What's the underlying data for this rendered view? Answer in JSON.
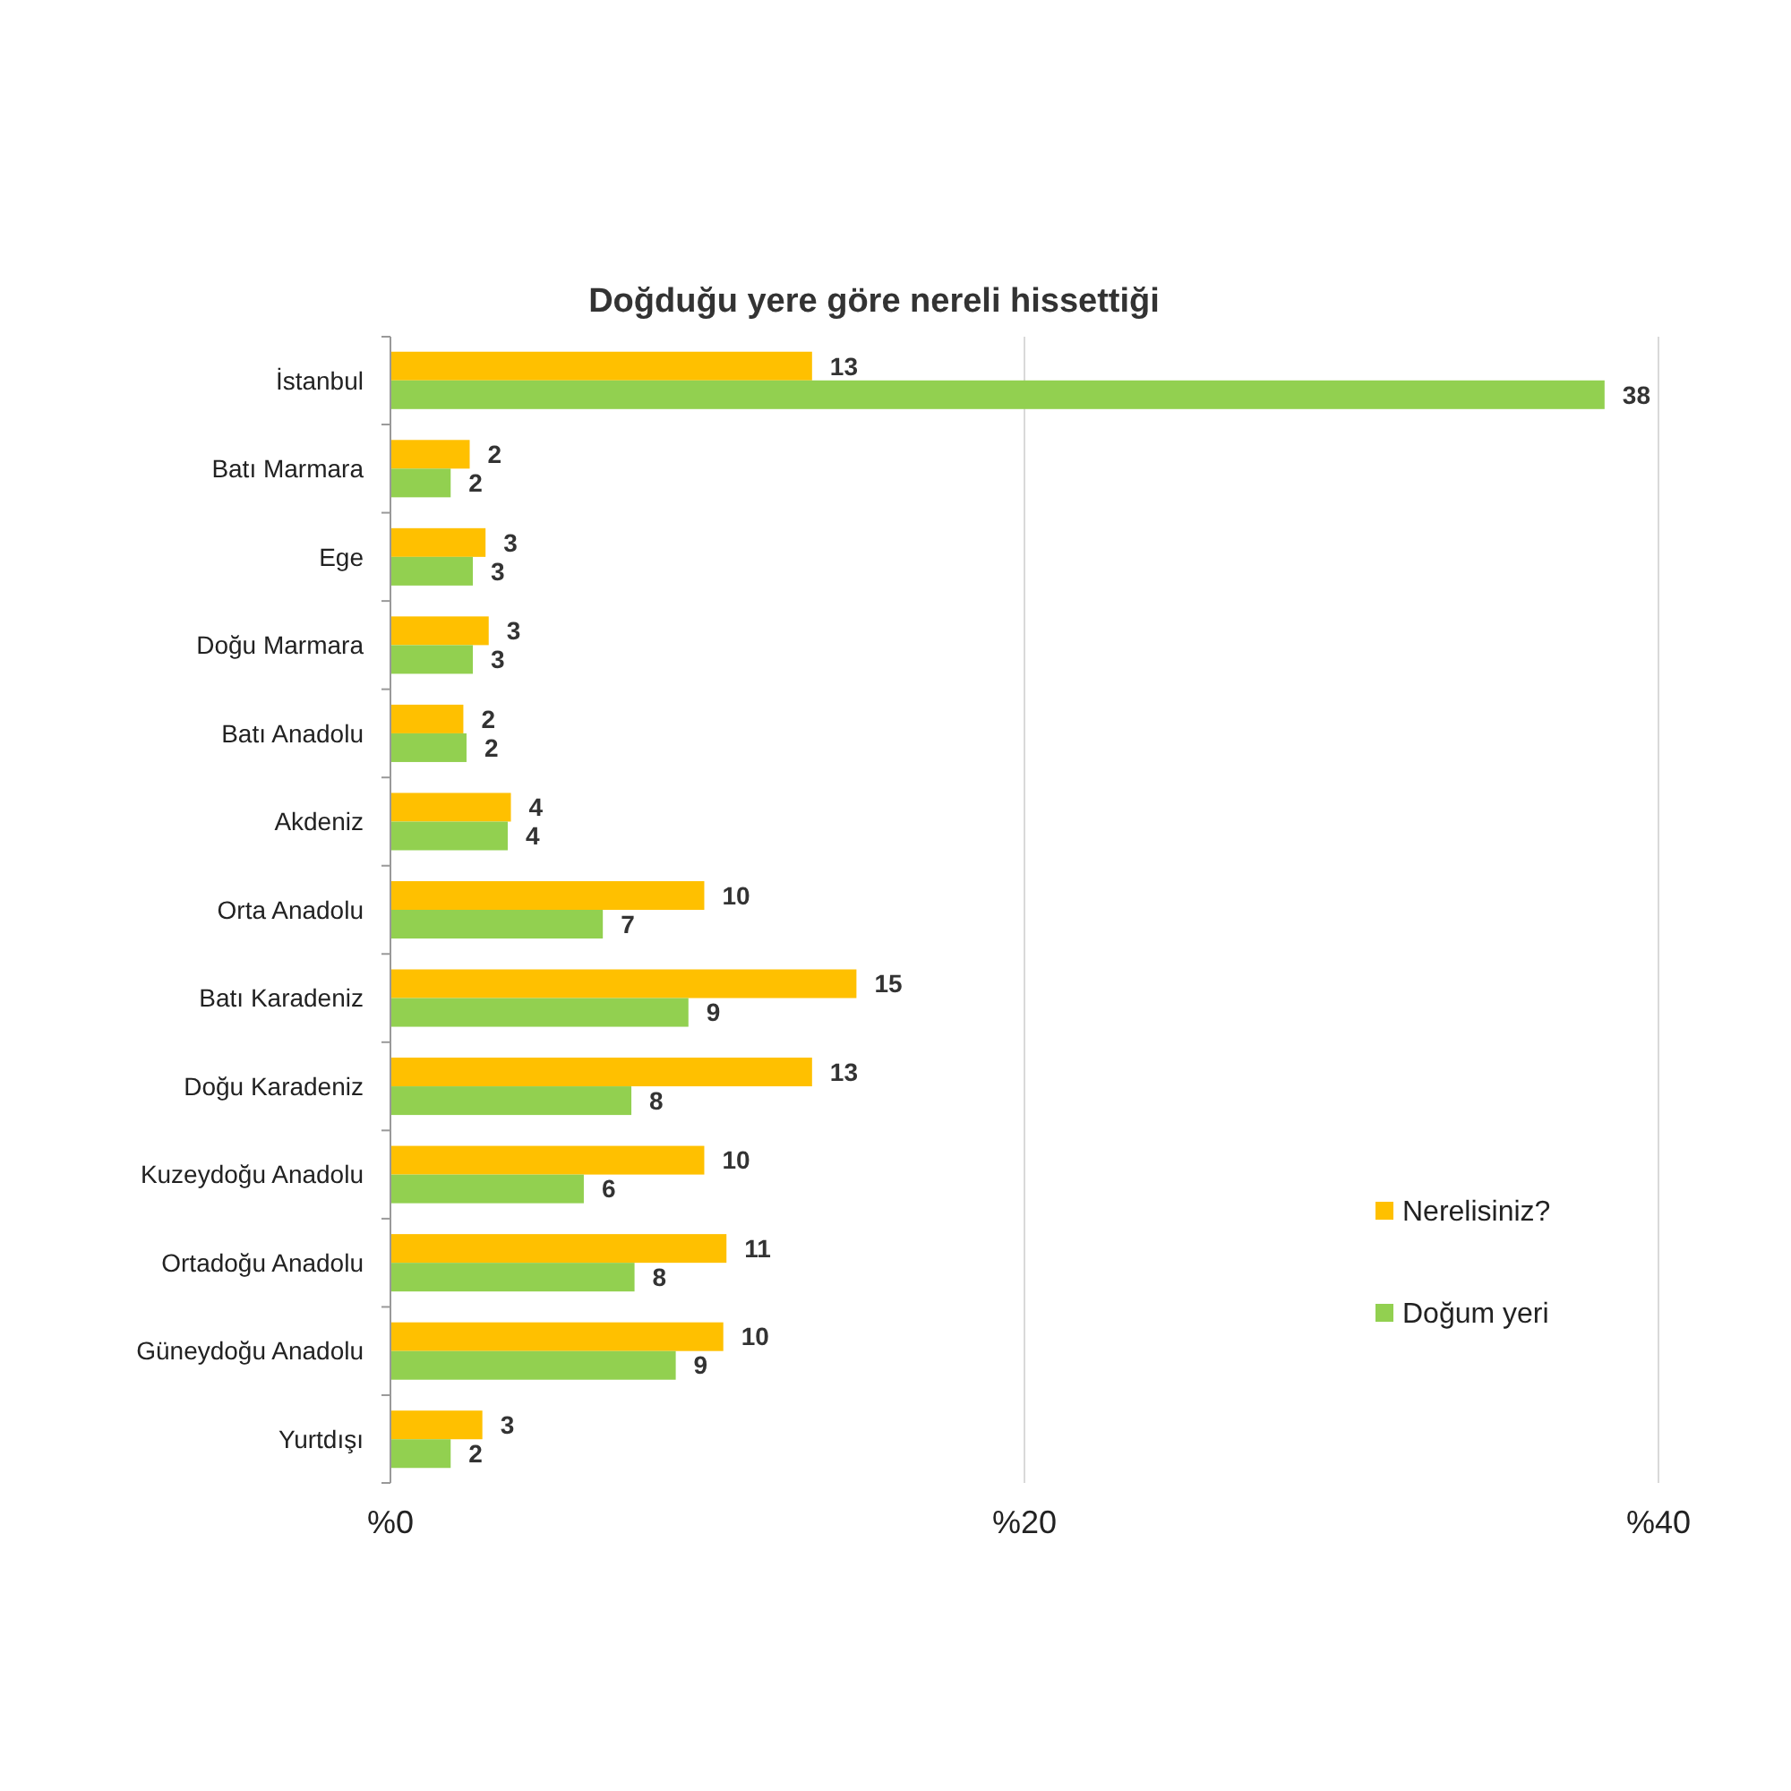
{
  "chart_data": {
    "type": "bar",
    "orientation": "horizontal",
    "title": "Doğduğu yere göre nereli hissettiği",
    "categories": [
      "İstanbul",
      "Batı Marmara",
      "Ege",
      "Doğu Marmara",
      "Batı Anadolu",
      "Akdeniz",
      "Orta Anadolu",
      "Batı Karadeniz",
      "Doğu Karadeniz",
      "Kuzeydoğu Anadolu",
      "Ortadoğu Anadolu",
      "Güneydoğu Anadolu",
      "Yurtdışı"
    ],
    "series": [
      {
        "name": "Nerelisiniz?",
        "color": "#ffc000",
        "values": [
          13.3,
          2.5,
          3.0,
          3.1,
          2.3,
          3.8,
          9.9,
          14.7,
          13.3,
          9.9,
          10.6,
          10.5,
          2.9
        ],
        "value_labels": [
          "13",
          "2",
          "3",
          "3",
          "2",
          "4",
          "10",
          "15",
          "13",
          "10",
          "11",
          "10",
          "3"
        ]
      },
      {
        "name": "Doğum yeri",
        "color": "#92d050",
        "values": [
          38.3,
          1.9,
          2.6,
          2.6,
          2.4,
          3.7,
          6.7,
          9.4,
          7.6,
          6.1,
          7.7,
          9.0,
          1.9
        ],
        "value_labels": [
          "38",
          "2",
          "3",
          "3",
          "2",
          "4",
          "7",
          "9",
          "8",
          "6",
          "8",
          "9",
          "2"
        ]
      }
    ],
    "xlim": [
      0,
      40
    ],
    "xticks": [
      {
        "value": 0,
        "label": "%0"
      },
      {
        "value": 20,
        "label": "%20"
      },
      {
        "value": 40,
        "label": "%40"
      }
    ],
    "grid": "x",
    "legend": "bottom right"
  }
}
